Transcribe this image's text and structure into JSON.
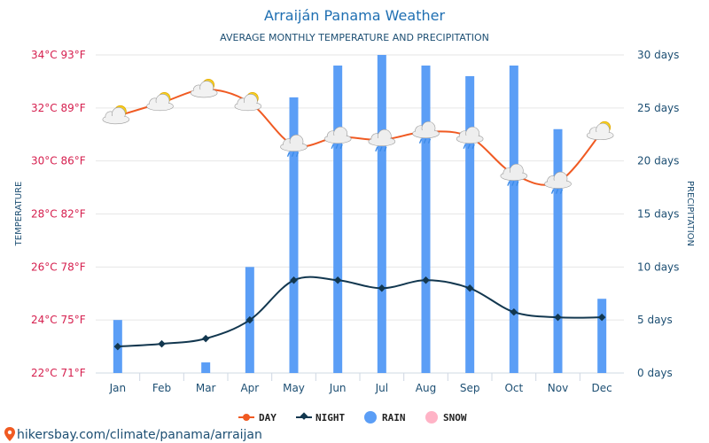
{
  "chart_data": {
    "type": "bar",
    "title": "Arraiján Panama Weather",
    "subtitle": "AVERAGE MONTHLY TEMPERATURE AND PRECIPITATION",
    "ylabel_left": "TEMPERATURE",
    "ylabel_right": "PRECIPITATION",
    "categories": [
      "Jan",
      "Feb",
      "Mar",
      "Apr",
      "May",
      "Jun",
      "Jul",
      "Aug",
      "Sep",
      "Oct",
      "Nov",
      "Dec"
    ],
    "y_left_ticks": [
      "22°C 71°F",
      "24°C 75°F",
      "26°C 78°F",
      "28°C 82°F",
      "30°C 86°F",
      "32°C 89°F",
      "34°C 93°F"
    ],
    "y_left_range": [
      22,
      34
    ],
    "y_right_ticks": [
      "0 days",
      "5 days",
      "10 days",
      "15 days",
      "20 days",
      "25 days",
      "30 days"
    ],
    "y_right_range": [
      0,
      30
    ],
    "series": [
      {
        "name": "DAY",
        "kind": "line",
        "axis": "temperature",
        "color": "#f05a22",
        "values": [
          31.7,
          32.2,
          32.7,
          32.2,
          30.6,
          30.9,
          30.8,
          31.1,
          30.9,
          29.5,
          29.2,
          31.1
        ]
      },
      {
        "name": "NIGHT",
        "kind": "line",
        "axis": "temperature",
        "color": "#12374f",
        "values": [
          23.0,
          23.1,
          23.3,
          24.0,
          25.5,
          25.5,
          25.2,
          25.5,
          25.2,
          24.3,
          24.1,
          24.1
        ]
      },
      {
        "name": "RAIN",
        "kind": "bar",
        "axis": "precipitation",
        "color": "#5b9ef6",
        "values": [
          5,
          0,
          1,
          10,
          26,
          29,
          30,
          29,
          28,
          29,
          23,
          7
        ]
      },
      {
        "name": "SNOW",
        "kind": "bar",
        "axis": "precipitation",
        "color": "#ffb3c6",
        "values": [
          0,
          0,
          0,
          0,
          0,
          0,
          0,
          0,
          0,
          0,
          0,
          0
        ]
      }
    ],
    "weather_icons": [
      "partly-sunny-icon",
      "partly-sunny-icon",
      "partly-sunny-icon",
      "partly-sunny-icon",
      "cloud-rain-icon",
      "cloud-rain-icon",
      "cloud-rain-icon",
      "cloud-rain-icon",
      "cloud-rain-icon",
      "cloud-rain-icon",
      "cloud-rain-icon",
      "partly-sunny-icon"
    ],
    "legend_position": "bottom",
    "grid": true
  },
  "footer": {
    "source_link": "hikersbay.com/climate/panama/arraijan",
    "pin_icon": "location-pin-icon"
  }
}
